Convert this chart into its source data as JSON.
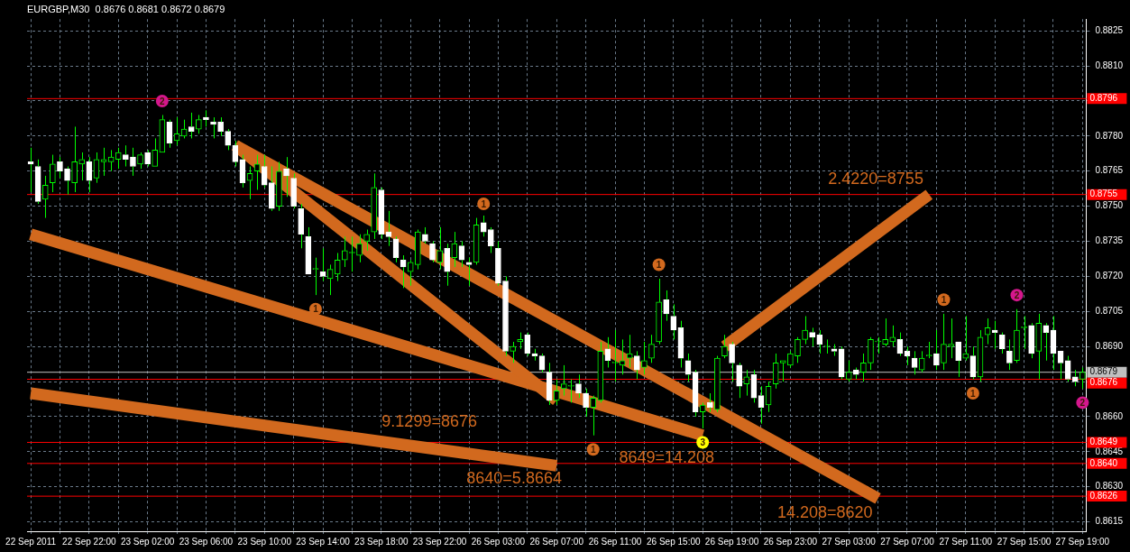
{
  "chart_data": {
    "type": "candlestick",
    "title": "EURGBP,M30  0.8676 0.8681 0.8672 0.8679",
    "grid": true,
    "categories": [
      "22 Sep 2011",
      null,
      null,
      null,
      null,
      null,
      null,
      null,
      "22 Sep 22:00",
      null,
      null,
      null,
      null,
      null,
      null,
      null,
      "23 Sep 02:00",
      null,
      null,
      null,
      null,
      null,
      null,
      null,
      "23 Sep 06:00",
      null,
      null,
      null,
      null,
      null,
      null,
      null,
      "23 Sep 10:00",
      null,
      null,
      null,
      null,
      null,
      null,
      null,
      "23 Sep 14:00",
      null,
      null,
      null,
      null,
      null,
      null,
      null,
      "23 Sep 18:00",
      null,
      null,
      null,
      null,
      null,
      null,
      null,
      "23 Sep 22:00",
      null,
      null,
      null,
      null,
      null,
      null,
      null,
      "26 Sep 03:00",
      null,
      null,
      null,
      null,
      null,
      null,
      null,
      "26 Sep 07:00",
      null,
      null,
      null,
      null,
      null,
      null,
      null,
      "26 Sep 11:00",
      null,
      null,
      null,
      null,
      null,
      null,
      null,
      "26 Sep 15:00",
      null,
      null,
      null,
      null,
      null,
      null,
      null,
      "26 Sep 19:00",
      null,
      null,
      null,
      null,
      null,
      null,
      null,
      "26 Sep 23:00",
      null,
      null,
      null,
      null,
      null,
      null,
      null,
      "27 Sep 03:00",
      null,
      null,
      null,
      null,
      null,
      null,
      null,
      "27 Sep 07:00",
      null,
      null,
      null,
      null,
      null,
      null,
      null,
      "27 Sep 11:00",
      null,
      null,
      null,
      null,
      null,
      null,
      null,
      "27 Sep 15:00",
      null,
      null,
      null,
      null,
      null,
      null,
      null,
      "27 Sep 19:00"
    ],
    "ohlc": [
      [
        0.8769,
        0.8775,
        0.8756,
        0.8768
      ],
      [
        0.8767,
        0.877,
        0.8751,
        0.8752
      ],
      [
        0.8753,
        0.8763,
        0.8745,
        0.8759
      ],
      [
        0.876,
        0.8772,
        0.8756,
        0.8768
      ],
      [
        0.8769,
        0.8771,
        0.8762,
        0.8765
      ],
      [
        0.8766,
        0.8767,
        0.8755,
        0.8761
      ],
      [
        0.876,
        0.8784,
        0.8756,
        0.8769
      ],
      [
        0.8768,
        0.8773,
        0.8761,
        0.877
      ],
      [
        0.8769,
        0.8771,
        0.8756,
        0.8761
      ],
      [
        0.8762,
        0.8773,
        0.876,
        0.877
      ],
      [
        0.8769,
        0.8775,
        0.8763,
        0.877
      ],
      [
        0.8769,
        0.8774,
        0.8765,
        0.8771
      ],
      [
        0.877,
        0.8775,
        0.8766,
        0.8773
      ],
      [
        0.8772,
        0.8776,
        0.8767,
        0.877
      ],
      [
        0.8771,
        0.8775,
        0.8763,
        0.8767
      ],
      [
        0.8768,
        0.8773,
        0.8766,
        0.8772
      ],
      [
        0.8773,
        0.8774,
        0.8767,
        0.8768
      ],
      [
        0.8767,
        0.8779,
        0.8767,
        0.8774
      ],
      [
        0.8773,
        0.8789,
        0.8773,
        0.8787
      ],
      [
        0.8786,
        0.8787,
        0.8775,
        0.8777
      ],
      [
        0.8778,
        0.8788,
        0.8776,
        0.8781
      ],
      [
        0.878,
        0.8787,
        0.8779,
        0.8783
      ],
      [
        0.8784,
        0.879,
        0.8779,
        0.8782
      ],
      [
        0.8783,
        0.8789,
        0.8781,
        0.8787
      ],
      [
        0.8788,
        0.8791,
        0.8784,
        0.8787
      ],
      [
        0.8786,
        0.8788,
        0.8779,
        0.8785
      ],
      [
        0.8786,
        0.8788,
        0.878,
        0.8782
      ],
      [
        0.8782,
        0.8783,
        0.8774,
        0.8776
      ],
      [
        0.8776,
        0.8778,
        0.8767,
        0.8769
      ],
      [
        0.877,
        0.8772,
        0.8758,
        0.876
      ],
      [
        0.8761,
        0.8767,
        0.8753,
        0.8764
      ],
      [
        0.8765,
        0.8772,
        0.8757,
        0.8768
      ],
      [
        0.8767,
        0.8772,
        0.8758,
        0.8759
      ],
      [
        0.876,
        0.8767,
        0.8748,
        0.8749
      ],
      [
        0.875,
        0.8769,
        0.8748,
        0.8765
      ],
      [
        0.8766,
        0.8771,
        0.8754,
        0.8763
      ],
      [
        0.8762,
        0.8764,
        0.8749,
        0.875
      ],
      [
        0.8749,
        0.8751,
        0.8732,
        0.8738
      ],
      [
        0.8737,
        0.8741,
        0.8721,
        0.8721
      ],
      [
        0.8723,
        0.8728,
        0.8712,
        0.8723
      ],
      [
        0.8722,
        0.8732,
        0.8718,
        0.872
      ],
      [
        0.8719,
        0.8725,
        0.8712,
        0.8723
      ],
      [
        0.8721,
        0.873,
        0.8718,
        0.8727
      ],
      [
        0.8727,
        0.8737,
        0.8724,
        0.8731
      ],
      [
        0.873,
        0.8737,
        0.8722,
        0.873
      ],
      [
        0.8729,
        0.8738,
        0.8726,
        0.8734
      ],
      [
        0.8735,
        0.874,
        0.8731,
        0.8738
      ],
      [
        0.8739,
        0.8764,
        0.8736,
        0.8758
      ],
      [
        0.8757,
        0.8758,
        0.8736,
        0.8738
      ],
      [
        0.8739,
        0.8748,
        0.8733,
        0.8737
      ],
      [
        0.8736,
        0.8737,
        0.8726,
        0.8728
      ],
      [
        0.8727,
        0.8729,
        0.8715,
        0.8724
      ],
      [
        0.8722,
        0.8727,
        0.8716,
        0.8726
      ],
      [
        0.8725,
        0.874,
        0.8723,
        0.8739
      ],
      [
        0.8738,
        0.8741,
        0.8734,
        0.8735
      ],
      [
        0.8734,
        0.8735,
        0.8726,
        0.8727
      ],
      [
        0.8726,
        0.8741,
        0.8723,
        0.8731
      ],
      [
        0.8732,
        0.8734,
        0.8716,
        0.8722
      ],
      [
        0.8728,
        0.8739,
        0.8724,
        0.8734
      ],
      [
        0.8733,
        0.8735,
        0.8724,
        0.8727
      ],
      [
        0.8726,
        0.8728,
        0.8716,
        0.8725
      ],
      [
        0.8726,
        0.8745,
        0.8725,
        0.8742
      ],
      [
        0.8743,
        0.8746,
        0.8737,
        0.8739
      ],
      [
        0.874,
        0.8741,
        0.873,
        0.8733
      ],
      [
        0.8732,
        0.8735,
        0.8716,
        0.8717
      ],
      [
        0.8718,
        0.872,
        0.8686,
        0.8688
      ],
      [
        0.8688,
        0.8692,
        0.8683,
        0.869
      ],
      [
        0.8692,
        0.8696,
        0.8689,
        0.8693
      ],
      [
        0.8695,
        0.8696,
        0.8686,
        0.8687
      ],
      [
        0.8687,
        0.8689,
        0.8684,
        0.8686
      ],
      [
        0.8686,
        0.8687,
        0.8679,
        0.868
      ],
      [
        0.8679,
        0.8683,
        0.8665,
        0.8667
      ],
      [
        0.8667,
        0.8676,
        0.8665,
        0.8671
      ],
      [
        0.8672,
        0.8682,
        0.8669,
        0.8674
      ],
      [
        0.8673,
        0.8676,
        0.8666,
        0.8673
      ],
      [
        0.8674,
        0.8678,
        0.8668,
        0.867
      ],
      [
        0.867,
        0.8672,
        0.866,
        0.8664
      ],
      [
        0.8664,
        0.8669,
        0.8652,
        0.8668
      ],
      [
        0.8667,
        0.8692,
        0.8666,
        0.8688
      ],
      [
        0.8689,
        0.8694,
        0.8681,
        0.8684
      ],
      [
        0.8683,
        0.8697,
        0.8675,
        0.8683
      ],
      [
        0.8682,
        0.8693,
        0.8678,
        0.8684
      ],
      [
        0.8685,
        0.8695,
        0.8681,
        0.8687
      ],
      [
        0.8686,
        0.8688,
        0.8676,
        0.868
      ],
      [
        0.8681,
        0.8692,
        0.8678,
        0.8684
      ],
      [
        0.8685,
        0.8695,
        0.8683,
        0.8691
      ],
      [
        0.8692,
        0.8719,
        0.8691,
        0.8709
      ],
      [
        0.871,
        0.8714,
        0.8701,
        0.8704
      ],
      [
        0.8703,
        0.8708,
        0.8693,
        0.8697
      ],
      [
        0.8698,
        0.8701,
        0.8681,
        0.8685
      ],
      [
        0.8684,
        0.8687,
        0.8675,
        0.8678
      ],
      [
        0.8679,
        0.868,
        0.866,
        0.8662
      ],
      [
        0.8662,
        0.8666,
        0.8655,
        0.8665
      ],
      [
        0.8666,
        0.867,
        0.8662,
        0.8664
      ],
      [
        0.8663,
        0.8686,
        0.8662,
        0.8685
      ],
      [
        0.8686,
        0.8695,
        0.8685,
        0.869
      ],
      [
        0.8691,
        0.8692,
        0.8675,
        0.8683
      ],
      [
        0.8682,
        0.8683,
        0.8668,
        0.8673
      ],
      [
        0.8674,
        0.868,
        0.8669,
        0.8677
      ],
      [
        0.8678,
        0.868,
        0.8666,
        0.8668
      ],
      [
        0.8669,
        0.8673,
        0.8657,
        0.8664
      ],
      [
        0.8665,
        0.8675,
        0.8662,
        0.8673
      ],
      [
        0.8674,
        0.8687,
        0.8672,
        0.8683
      ],
      [
        0.8683,
        0.8684,
        0.8675,
        0.8684
      ],
      [
        0.8682,
        0.8688,
        0.8681,
        0.8687
      ],
      [
        0.8686,
        0.8694,
        0.8683,
        0.8693
      ],
      [
        0.8693,
        0.8703,
        0.8691,
        0.8697
      ],
      [
        0.8696,
        0.8698,
        0.869,
        0.8694
      ],
      [
        0.8695,
        0.8697,
        0.8687,
        0.8691
      ],
      [
        0.869,
        0.8693,
        0.8687,
        0.869
      ],
      [
        0.8689,
        0.8691,
        0.8686,
        0.8688
      ],
      [
        0.8689,
        0.869,
        0.8676,
        0.8677
      ],
      [
        0.8676,
        0.8684,
        0.8675,
        0.8679
      ],
      [
        0.868,
        0.8681,
        0.8676,
        0.8678
      ],
      [
        0.8679,
        0.8687,
        0.8675,
        0.8683
      ],
      [
        0.8683,
        0.8694,
        0.868,
        0.8693
      ],
      [
        0.8692,
        0.8694,
        0.8687,
        0.8692
      ],
      [
        0.8691,
        0.8702,
        0.869,
        0.8693
      ],
      [
        0.8692,
        0.8699,
        0.869,
        0.8694
      ],
      [
        0.8693,
        0.8696,
        0.8686,
        0.8687
      ],
      [
        0.8688,
        0.869,
        0.8682,
        0.8686
      ],
      [
        0.8685,
        0.8688,
        0.8678,
        0.8681
      ],
      [
        0.868,
        0.8688,
        0.8679,
        0.8685
      ],
      [
        0.8686,
        0.8692,
        0.8685,
        0.8686
      ],
      [
        0.8687,
        0.8697,
        0.868,
        0.8682
      ],
      [
        0.8683,
        0.8704,
        0.868,
        0.8691
      ],
      [
        0.869,
        0.8702,
        0.8685,
        0.8691
      ],
      [
        0.8692,
        0.8692,
        0.8677,
        0.8684
      ],
      [
        0.8685,
        0.8703,
        0.8684,
        0.8687
      ],
      [
        0.8686,
        0.869,
        0.8676,
        0.8677
      ],
      [
        0.8677,
        0.8697,
        0.8675,
        0.8694
      ],
      [
        0.8695,
        0.8702,
        0.8691,
        0.8698
      ],
      [
        0.8697,
        0.8701,
        0.8689,
        0.8696
      ],
      [
        0.8695,
        0.8696,
        0.8687,
        0.8689
      ],
      [
        0.8688,
        0.8693,
        0.868,
        0.8683
      ],
      [
        0.8684,
        0.8706,
        0.8683,
        0.8697
      ],
      [
        0.8698,
        0.8703,
        0.8689,
        0.8698
      ],
      [
        0.8699,
        0.87,
        0.8685,
        0.8687
      ],
      [
        0.8688,
        0.8704,
        0.8676,
        0.87
      ],
      [
        0.8699,
        0.87,
        0.8684,
        0.8696
      ],
      [
        0.8697,
        0.8703,
        0.868,
        0.8687
      ],
      [
        0.8688,
        0.8688,
        0.8676,
        0.8683
      ],
      [
        0.8684,
        0.8686,
        0.8675,
        0.8676
      ],
      [
        0.8677,
        0.868,
        0.8673,
        0.8675
      ],
      [
        0.8676,
        0.8681,
        0.8672,
        0.8679
      ]
    ],
    "series": [
      {
        "type": "line",
        "color": "#d2691e",
        "values": [
          null,
          null,
          null,
          null,
          null,
          null,
          null,
          null,
          null,
          null,
          null,
          null,
          null,
          null,
          null,
          null,
          null,
          null,
          null,
          null,
          null,
          null,
          null,
          null,
          null,
          null,
          null,
          null,
          0.8776,
          null,
          null,
          null,
          null,
          null,
          null,
          null,
          null,
          null,
          null,
          null,
          null,
          null,
          null,
          null,
          null,
          null,
          null,
          null,
          null,
          null,
          null,
          null,
          null,
          null,
          null,
          null,
          null,
          null,
          null,
          null,
          null,
          null,
          null,
          null,
          null,
          null,
          null,
          null,
          null,
          null,
          null,
          null,
          null,
          null,
          null,
          null,
          null,
          null,
          null,
          null,
          null,
          null,
          null,
          null,
          null,
          null,
          null,
          null,
          null,
          null,
          null,
          null,
          null,
          null,
          null,
          null,
          null,
          null,
          null,
          null,
          null,
          null,
          null,
          null,
          null,
          null,
          null,
          null,
          null,
          null,
          null,
          null,
          null,
          null,
          null,
          null,
          0.8625,
          null,
          null,
          null,
          null,
          null,
          null,
          null,
          null,
          null,
          null,
          null,
          null,
          null,
          null,
          null,
          null,
          null,
          null,
          null,
          null,
          null,
          null,
          null,
          null,
          null,
          null,
          null,
          null
        ]
      },
      {
        "type": "line",
        "color": "#d2691e",
        "values": [
          null,
          null,
          null,
          null,
          null,
          null,
          null,
          null,
          null,
          null,
          null,
          null,
          null,
          null,
          null,
          null,
          null,
          null,
          null,
          null,
          null,
          null,
          null,
          null,
          null,
          null,
          null,
          null,
          0.8776,
          null,
          null,
          null,
          null,
          null,
          null,
          null,
          null,
          null,
          null,
          null,
          null,
          null,
          null,
          null,
          null,
          null,
          null,
          null,
          null,
          null,
          null,
          null,
          null,
          null,
          null,
          null,
          null,
          null,
          null,
          null,
          null,
          null,
          null,
          null,
          null,
          null,
          null,
          null,
          null,
          null,
          null,
          null,
          0.8667,
          null,
          null,
          null,
          null,
          null,
          null,
          null,
          null,
          null,
          null,
          null,
          null,
          null,
          null,
          null,
          null,
          null,
          null,
          null,
          null,
          null,
          null,
          null,
          null,
          null,
          null,
          null,
          null,
          null,
          null,
          null,
          null,
          null,
          null,
          null,
          null,
          null,
          null,
          null,
          null,
          null,
          null,
          null,
          null,
          null,
          null,
          null,
          null,
          null,
          null,
          null,
          null,
          null,
          null,
          null,
          null,
          null,
          null,
          null,
          null,
          null,
          null,
          null,
          null,
          null,
          null,
          null,
          null,
          null,
          null,
          null,
          null
        ]
      },
      {
        "type": "line",
        "color": "#d2691e",
        "values": [
          0.8738,
          null,
          null,
          null,
          null,
          null,
          null,
          null,
          null,
          null,
          null,
          null,
          null,
          null,
          null,
          null,
          null,
          null,
          null,
          null,
          null,
          null,
          null,
          null,
          null,
          null,
          null,
          null,
          null,
          null,
          null,
          null,
          null,
          null,
          null,
          null,
          null,
          null,
          null,
          null,
          null,
          null,
          null,
          null,
          null,
          null,
          null,
          null,
          null,
          null,
          null,
          null,
          null,
          null,
          null,
          null,
          null,
          null,
          null,
          null,
          null,
          null,
          null,
          null,
          null,
          null,
          null,
          null,
          null,
          null,
          null,
          null,
          null,
          null,
          null,
          null,
          null,
          null,
          null,
          null,
          null,
          null,
          null,
          null,
          null,
          null,
          null,
          null,
          null,
          null,
          null,
          null,
          0.8652,
          null,
          null,
          null,
          null,
          null,
          null,
          null,
          null,
          null,
          null,
          null,
          null,
          null,
          null,
          null,
          null,
          null,
          null,
          null,
          null,
          null,
          null,
          null,
          null,
          null,
          null,
          null,
          null,
          null,
          null,
          null,
          null,
          null,
          null,
          null,
          null,
          null,
          null,
          null,
          null,
          null,
          null,
          null,
          null,
          null,
          null,
          null,
          null,
          null,
          null,
          null,
          null
        ]
      },
      {
        "type": "line",
        "color": "#d2691e",
        "values": [
          0.867,
          null,
          null,
          null,
          null,
          null,
          null,
          null,
          null,
          null,
          null,
          null,
          null,
          null,
          null,
          null,
          null,
          null,
          null,
          null,
          null,
          null,
          null,
          null,
          null,
          null,
          null,
          null,
          null,
          null,
          null,
          null,
          null,
          null,
          null,
          null,
          null,
          null,
          null,
          null,
          null,
          null,
          null,
          null,
          null,
          null,
          null,
          null,
          null,
          null,
          null,
          null,
          null,
          null,
          null,
          null,
          null,
          null,
          null,
          null,
          null,
          null,
          null,
          null,
          null,
          null,
          null,
          null,
          null,
          null,
          null,
          null,
          0.8639,
          null,
          null,
          null,
          null,
          null,
          null,
          null,
          null,
          null,
          null,
          null,
          null,
          null,
          null,
          null,
          null,
          null,
          null,
          null,
          null,
          null,
          null,
          null,
          null,
          null,
          null,
          null,
          null,
          null,
          null,
          null,
          null,
          null,
          null,
          null,
          null,
          null,
          null,
          null,
          null,
          null,
          null,
          null,
          null,
          null,
          null,
          null,
          null,
          null,
          null,
          null,
          null,
          null,
          null,
          null,
          null,
          null,
          null,
          null,
          null,
          null,
          null,
          null,
          null,
          null,
          null,
          null,
          null,
          null,
          null,
          null,
          null
        ]
      },
      {
        "type": "line",
        "color": "#d2691e",
        "values": [
          null,
          null,
          null,
          null,
          null,
          null,
          null,
          null,
          null,
          null,
          null,
          null,
          null,
          null,
          null,
          null,
          null,
          null,
          null,
          null,
          null,
          null,
          null,
          null,
          null,
          null,
          null,
          null,
          null,
          null,
          null,
          null,
          null,
          null,
          null,
          null,
          null,
          null,
          null,
          null,
          null,
          null,
          null,
          null,
          null,
          null,
          null,
          null,
          null,
          null,
          null,
          null,
          null,
          null,
          null,
          null,
          null,
          null,
          null,
          null,
          null,
          null,
          null,
          null,
          null,
          null,
          null,
          null,
          null,
          null,
          null,
          null,
          null,
          null,
          null,
          null,
          null,
          null,
          null,
          null,
          null,
          null,
          null,
          null,
          null,
          null,
          null,
          null,
          null,
          null,
          null,
          null,
          null,
          null,
          null,
          0.869,
          null,
          null,
          null,
          null,
          null,
          null,
          null,
          null,
          null,
          null,
          null,
          null,
          null,
          null,
          null,
          null,
          null,
          null,
          null,
          null,
          null,
          null,
          null,
          null,
          null,
          null,
          null,
          0.8755,
          null,
          null,
          null,
          null,
          null,
          null,
          null,
          null,
          null,
          null,
          null,
          null,
          null,
          null,
          null,
          null,
          null,
          null,
          null,
          null,
          null
        ]
      },
      {
        "type": "scatter",
        "name": "1",
        "color": "#d2691e",
        "marker": "circle",
        "values": [
          null,
          null,
          null,
          null,
          null,
          null,
          null,
          null,
          null,
          null,
          null,
          null,
          null,
          null,
          null,
          null,
          null,
          null,
          null,
          null,
          null,
          null,
          null,
          null,
          null,
          null,
          null,
          null,
          null,
          null,
          null,
          null,
          null,
          null,
          null,
          null,
          null,
          null,
          null,
          0.8706,
          null,
          null,
          null,
          null,
          null,
          null,
          null,
          null,
          null,
          null,
          null,
          null,
          null,
          null,
          null,
          null,
          null,
          null,
          null,
          null,
          null,
          null,
          0.8751,
          null,
          null,
          null,
          null,
          null,
          null,
          null,
          null,
          null,
          null,
          null,
          null,
          null,
          null,
          0.8646,
          null,
          null,
          null,
          null,
          null,
          null,
          null,
          null,
          0.8725,
          null,
          null,
          null,
          null,
          null,
          null,
          null,
          null,
          null,
          null,
          null,
          null,
          null,
          null,
          null,
          null,
          null,
          null,
          null,
          null,
          null,
          null,
          null,
          null,
          null,
          null,
          null,
          null,
          null,
          null,
          null,
          null,
          null,
          null,
          null,
          null,
          null,
          null,
          0.871,
          null,
          null,
          null,
          0.867,
          null,
          null,
          null,
          null,
          null,
          null,
          null,
          null,
          null,
          null,
          null,
          null,
          null,
          null,
          null
        ]
      },
      {
        "type": "scatter",
        "name": "2",
        "color": "#d4178c",
        "marker": "circle",
        "values": [
          null,
          null,
          null,
          null,
          null,
          null,
          null,
          null,
          null,
          null,
          null,
          null,
          null,
          null,
          null,
          null,
          null,
          null,
          0.8795,
          null,
          null,
          null,
          null,
          null,
          null,
          null,
          null,
          null,
          null,
          null,
          null,
          null,
          null,
          null,
          null,
          null,
          null,
          null,
          null,
          null,
          null,
          null,
          null,
          null,
          null,
          null,
          null,
          null,
          null,
          null,
          null,
          null,
          null,
          null,
          null,
          null,
          null,
          null,
          null,
          null,
          null,
          null,
          null,
          null,
          null,
          null,
          null,
          null,
          null,
          null,
          null,
          null,
          null,
          null,
          null,
          null,
          null,
          null,
          null,
          null,
          null,
          null,
          null,
          null,
          null,
          null,
          null,
          null,
          null,
          null,
          null,
          null,
          null,
          null,
          null,
          null,
          null,
          null,
          null,
          null,
          null,
          null,
          null,
          null,
          null,
          null,
          null,
          null,
          null,
          null,
          null,
          null,
          null,
          null,
          null,
          null,
          null,
          null,
          null,
          null,
          null,
          null,
          null,
          null,
          null,
          null,
          null,
          null,
          null,
          null,
          null,
          null,
          null,
          null,
          null,
          0.8712,
          null,
          null,
          null,
          null,
          null,
          null,
          null,
          null,
          0.8666
        ]
      },
      {
        "type": "scatter",
        "name": "3",
        "color": "#ffff00",
        "marker": "circle",
        "values": [
          null,
          null,
          null,
          null,
          null,
          null,
          null,
          null,
          null,
          null,
          null,
          null,
          null,
          null,
          null,
          null,
          null,
          null,
          null,
          null,
          null,
          null,
          null,
          null,
          null,
          null,
          null,
          null,
          null,
          null,
          null,
          null,
          null,
          null,
          null,
          null,
          null,
          null,
          null,
          null,
          null,
          null,
          null,
          null,
          null,
          null,
          null,
          null,
          null,
          null,
          null,
          null,
          null,
          null,
          null,
          null,
          null,
          null,
          null,
          null,
          null,
          null,
          null,
          null,
          null,
          null,
          null,
          null,
          null,
          null,
          null,
          null,
          null,
          null,
          null,
          null,
          null,
          null,
          null,
          null,
          null,
          null,
          null,
          null,
          null,
          null,
          null,
          null,
          null,
          null,
          null,
          null,
          0.8649,
          null,
          null,
          null,
          null,
          null,
          null,
          null,
          null,
          null,
          null,
          null,
          null,
          null,
          null,
          null,
          null,
          null,
          null,
          null,
          null,
          null,
          null,
          null,
          null,
          null,
          null,
          null,
          null,
          null,
          null,
          null,
          null,
          null,
          null,
          null,
          null,
          null,
          null,
          null,
          null,
          null,
          null,
          null,
          null,
          null,
          null,
          null,
          null,
          null,
          null,
          null,
          null
        ]
      }
    ],
    "ylim": [
      0.8611,
      0.883
    ],
    "yticks": [
      0.8615,
      {
        "value": 0.863,
        "label": "0.8630"
      },
      0.8645,
      {
        "value": 0.866,
        "label": "0.8660"
      },
      {
        "value": 0.8675,
        "label": null
      },
      {
        "value": 0.869,
        "label": "0.8690"
      },
      0.8705,
      {
        "value": 0.872,
        "label": "0.8720"
      },
      0.8735,
      {
        "value": 0.875,
        "label": "0.8750"
      },
      0.8765,
      {
        "value": 0.878,
        "label": "0.8780"
      },
      {
        "value": 0.8795,
        "label": null
      },
      {
        "value": 0.881,
        "label": "0.8810"
      },
      0.8825
    ],
    "ref_lines": [
      {
        "axis": "y",
        "value": 0.8796,
        "label": "0.8796",
        "color": "#ff0000"
      },
      {
        "axis": "y",
        "value": 0.8755,
        "label": "0.8755",
        "color": "#ff0000"
      },
      {
        "axis": "y",
        "value": 0.8679,
        "label": "0.8679",
        "color": "#c0c0c0"
      },
      {
        "axis": "y",
        "value": 0.8676,
        "label": "0.8676",
        "color": "#ff0000"
      },
      {
        "axis": "y",
        "value": 0.8649,
        "label": "0.8649",
        "color": "#ff0000"
      },
      {
        "axis": "y",
        "value": 0.864,
        "label": "0.8640",
        "color": "#ff0000"
      },
      {
        "axis": "y",
        "value": 0.8626,
        "label": "0.8626",
        "color": "#ff0000"
      }
    ],
    "annotations": [
      "2.4220=8755",
      "9.1299=8676",
      "8649=14.208",
      "8640=5.8664",
      "14.208=8620"
    ]
  }
}
